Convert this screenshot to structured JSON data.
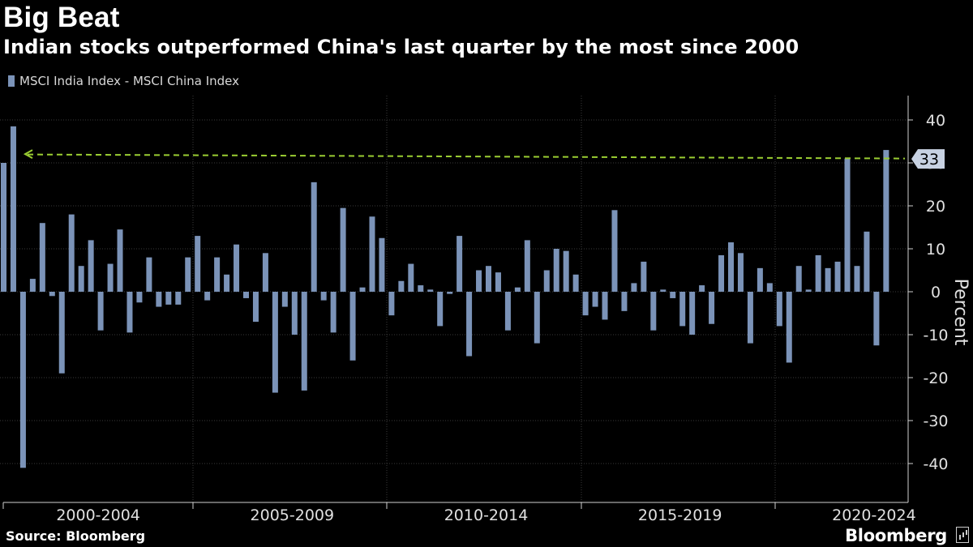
{
  "header": {
    "title": "Big Beat",
    "subtitle": "Indian stocks outperformed China's last quarter by the most since 2000"
  },
  "legend": {
    "label": "MSCI India Index - MSCI China Index"
  },
  "footer": {
    "source": "Source: Bloomberg",
    "brand": "Bloomberg"
  },
  "colors": {
    "bar": "#7b93b8",
    "reference_line": "#9acd32",
    "grid": "#3a3a3a",
    "axis": "#cfcfcf"
  },
  "chart_data": {
    "type": "bar",
    "title": "Big Beat",
    "subtitle": "Indian stocks outperformed China's last quarter by the most since 2000",
    "series": [
      {
        "name": "MSCI India Index - MSCI China Index",
        "values": [
          30,
          38.5,
          -41,
          3,
          16,
          -1,
          -19,
          18,
          6,
          12,
          -9,
          6.5,
          14.5,
          -9.5,
          -2.5,
          8,
          -3.5,
          -3,
          -3,
          8,
          13,
          -2,
          8,
          4,
          11,
          -1.5,
          -7,
          9,
          -23.5,
          -3.5,
          -10,
          -23,
          25.5,
          -2,
          -9.5,
          19.5,
          -16,
          1,
          17.5,
          12.5,
          -5.5,
          2.5,
          6.5,
          1.5,
          0.5,
          -8,
          -0.5,
          13,
          -15,
          5,
          6,
          4.5,
          -9,
          1,
          12,
          -12,
          5,
          10,
          9.5,
          4,
          -5.5,
          -3.5,
          -6.5,
          19,
          -4.5,
          2,
          7,
          -9,
          0.5,
          -1.5,
          -8,
          -10,
          1.5,
          -7.5,
          8.5,
          11.5,
          9,
          -12,
          5.5,
          2,
          -8,
          -16.5,
          6,
          0.5,
          8.5,
          5.5,
          7,
          31,
          6,
          14,
          -12.5,
          33
        ]
      }
    ],
    "period_labels": [
      "2000-2004",
      "2005-2009",
      "2010-2014",
      "2015-2019",
      "2020-2024"
    ],
    "ylabel": "Percent",
    "yticks": [
      -40,
      -30,
      -20,
      -10,
      0,
      10,
      20,
      30,
      40
    ],
    "ylim": [
      -46,
      46
    ],
    "grid": true,
    "reference_line": {
      "value": 33,
      "label": "33",
      "style": "dashed"
    }
  }
}
